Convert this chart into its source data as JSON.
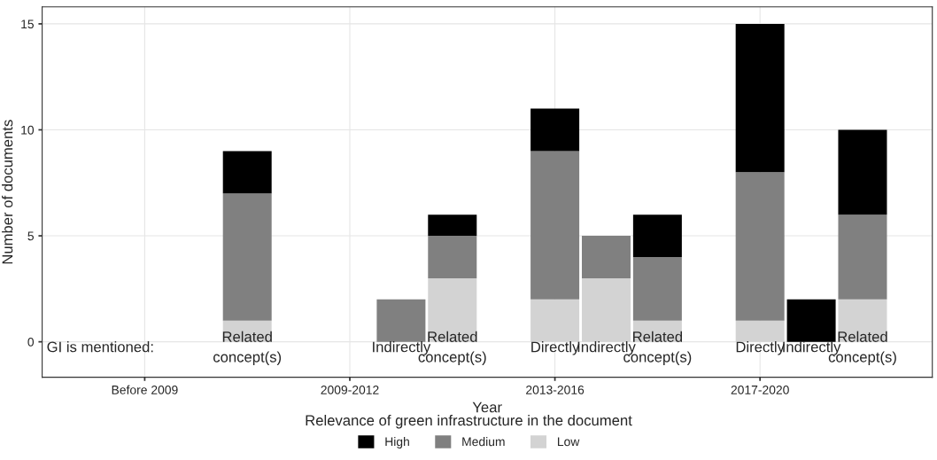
{
  "chart_data": {
    "type": "bar",
    "stacked": true,
    "xlabel": "Year",
    "ylabel": "Number of documents",
    "legend_title": "Relevance of green infrastructure in the document",
    "legend": "bottom",
    "grid": true,
    "categories": [
      null,
      null,
      "Related\nconcept(s)",
      null,
      null,
      "Indirectly",
      "Related\nconcept(s)",
      null,
      "Directly",
      "Indirectly",
      "Related\nconcept(s)",
      null,
      "Directly",
      "Indirectly",
      "Related\nconcept(s)"
    ],
    "ylim": [
      -1.67,
      15.8
    ],
    "yticks": [
      0,
      5,
      10,
      15
    ],
    "series": [
      {
        "name": "Low",
        "color": "#d3d3d3",
        "values": [
          null,
          null,
          1,
          null,
          null,
          null,
          3,
          null,
          2,
          3,
          1,
          null,
          1,
          null,
          2
        ]
      },
      {
        "name": "Medium",
        "color": "#808080",
        "values": [
          null,
          null,
          6,
          null,
          null,
          2,
          2,
          null,
          7,
          2,
          3,
          null,
          7,
          null,
          4
        ]
      },
      {
        "name": "High",
        "color": "#000000",
        "values": [
          null,
          null,
          2,
          null,
          null,
          null,
          1,
          null,
          2,
          null,
          2,
          null,
          7,
          2,
          4
        ]
      }
    ],
    "annotations": [
      "GI is mentioned:",
      "Before 2009",
      "2009-2012",
      "2013-2016",
      "2017-2020"
    ]
  }
}
